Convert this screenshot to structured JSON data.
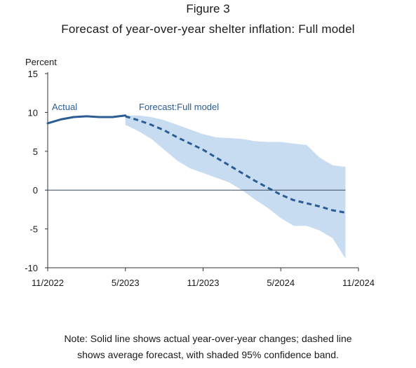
{
  "figure": {
    "label": "Figure 3",
    "title": "Forecast of year-over-year shelter inflation: Full model",
    "note_line1": "Note: Solid line shows actual year-over-year changes; dashed line",
    "note_line2": "shows average forecast, with shaded 95% confidence band."
  },
  "colors": {
    "actual": "#2b5c93",
    "forecast": "#2b5c93",
    "band": "#c7dcf0",
    "axis": "#333333",
    "zero_line": "#3a4a5a",
    "label_text": "#2b5c93"
  },
  "chart_data": {
    "type": "line",
    "xlabel": "",
    "ylabel": "Percent",
    "ylim": [
      -10,
      15
    ],
    "yticks": [
      15,
      10,
      5,
      0,
      -5,
      -10
    ],
    "xlim": [
      "2022-11",
      "2024-11"
    ],
    "xticks": [
      "11/2022",
      "5/2023",
      "11/2023",
      "5/2024",
      "11/2024"
    ],
    "grid": false,
    "annotations": [
      "Actual",
      "Forecast:Full model"
    ],
    "series": [
      {
        "style": "solid",
        "x": [
          "2022-11",
          "2022-12",
          "2023-01",
          "2023-02",
          "2023-03",
          "2023-04",
          "2023-05"
        ],
        "values": [
          8.6,
          9.1,
          9.4,
          9.5,
          9.4,
          9.4,
          9.6
        ]
      },
      {
        "style": "dashed",
        "x": [
          "2023-05",
          "2023-06",
          "2023-07",
          "2023-08",
          "2023-09",
          "2023-10",
          "2023-11",
          "2023-12",
          "2024-01",
          "2024-02",
          "2024-03",
          "2024-04",
          "2024-05",
          "2024-06",
          "2024-07",
          "2024-08",
          "2024-09",
          "2024-10"
        ],
        "values": [
          9.5,
          9.0,
          8.4,
          7.7,
          6.8,
          6.0,
          5.2,
          4.2,
          3.2,
          2.2,
          1.2,
          0.3,
          -0.6,
          -1.3,
          -1.7,
          -2.1,
          -2.6,
          -2.9
        ]
      }
    ],
    "band": {
      "label": "95% confidence band",
      "x": [
        "2023-05",
        "2023-06",
        "2023-07",
        "2023-08",
        "2023-09",
        "2023-10",
        "2023-11",
        "2023-12",
        "2024-01",
        "2024-02",
        "2024-03",
        "2024-04",
        "2024-05",
        "2024-06",
        "2024-07",
        "2024-08",
        "2024-09",
        "2024-10"
      ],
      "upper": [
        9.6,
        9.6,
        9.4,
        9.0,
        8.4,
        7.8,
        7.2,
        6.8,
        6.7,
        6.6,
        6.3,
        6.2,
        6.2,
        6.0,
        5.8,
        4.2,
        3.2,
        3.0
      ],
      "lower": [
        8.4,
        7.6,
        6.6,
        5.2,
        3.8,
        2.8,
        2.2,
        1.6,
        1.0,
        0.0,
        -1.2,
        -2.3,
        -3.6,
        -4.6,
        -4.6,
        -5.2,
        -6.2,
        -8.8
      ]
    }
  }
}
